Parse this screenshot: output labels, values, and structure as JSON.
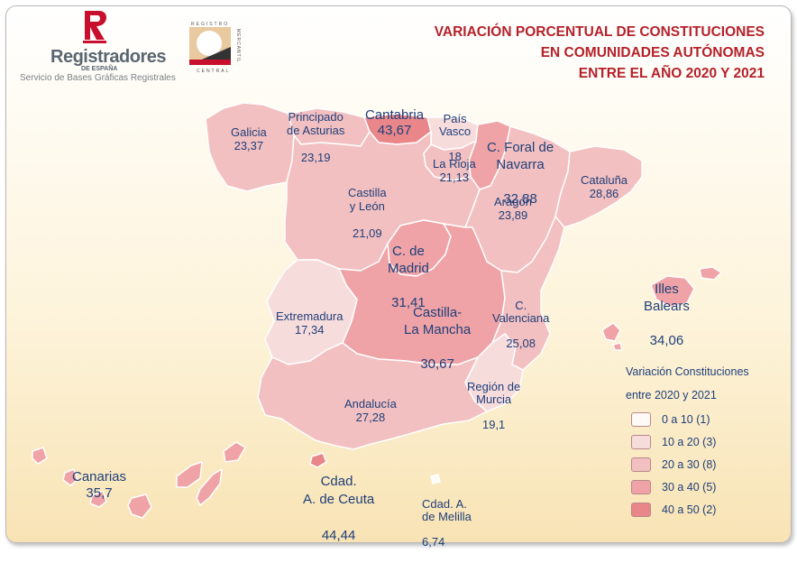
{
  "header": {
    "brand_name": "Registradores",
    "brand_sub": "DE ESPAÑA",
    "brand_service": "Servicio de Bases Gráficas Registrales",
    "mercantil_text": "REGISTRO MERCANTIL CENTRAL",
    "title_line1": "VARIACIÓN PORCENTUAL DE CONSTITUCIONES",
    "title_line2": "EN COMUNIDADES AUTÓNOMAS",
    "title_line3": "ENTRE EL AÑO 2020 Y 2021"
  },
  "colors": {
    "title": "#b5212a",
    "label": "#1f3f7a",
    "band_0_10": "#fefaf7",
    "band_10_20": "#f7dcdc",
    "band_20_30": "#f3c0c1",
    "band_30_40": "#efa3a6",
    "band_40_50": "#e8868a"
  },
  "regions": {
    "galicia": {
      "name": "Galicia",
      "value": "23,37",
      "band": "20-30"
    },
    "asturias": {
      "name": "Principado\nde Asturias",
      "value": "23,19",
      "band": "20-30"
    },
    "cantabria": {
      "name": "Cantabria",
      "value": "43,67",
      "band": "40-50"
    },
    "pais_vasco": {
      "name": "País\nVasco",
      "value": "18",
      "band": "10-20"
    },
    "navarra": {
      "name": "C. Foral de\nNavarra",
      "value": "32,88",
      "band": "30-40"
    },
    "la_rioja": {
      "name": "La Rioja",
      "value": "21,13",
      "band": "20-30"
    },
    "castilla_leon": {
      "name": "Castilla\ny León",
      "value": "21,09",
      "band": "20-30"
    },
    "aragon": {
      "name": "Aragón",
      "value": "23,89",
      "band": "20-30"
    },
    "cataluna": {
      "name": "Cataluña",
      "value": "28,86",
      "band": "20-30"
    },
    "madrid": {
      "name": "C. de\nMadrid",
      "value": "31,41",
      "band": "30-40"
    },
    "castilla_la_mancha": {
      "name": "Castilla-\nLa Mancha",
      "value": "30,67",
      "band": "30-40"
    },
    "extremadura": {
      "name": "Extremadura",
      "value": "17,34",
      "band": "10-20"
    },
    "valenciana": {
      "name": "C.\nValenciana",
      "value": "25,08",
      "band": "20-30"
    },
    "baleares": {
      "name": "Illes\nBalears",
      "value": "34,06",
      "band": "30-40"
    },
    "murcia": {
      "name": "Región de\nMurcia",
      "value": "19,1",
      "band": "10-20"
    },
    "andalucia": {
      "name": "Andalucía",
      "value": "27,28",
      "band": "20-30"
    },
    "canarias": {
      "name": "Canarias",
      "value": "35,7",
      "band": "30-40"
    },
    "ceuta": {
      "name": "Cdad.\nA. de Ceuta",
      "value": "44,44",
      "band": "40-50"
    },
    "melilla": {
      "name": "Cdad. A.\nde Melilla",
      "value": "6,74",
      "band": "0-10"
    }
  },
  "legend": {
    "title_line1": "Variación Constituciones",
    "title_line2": "entre 2020 y 2021",
    "items": [
      {
        "label": "0 a 10 (1)",
        "color": "#fefaf7"
      },
      {
        "label": "10 a 20 (3)",
        "color": "#f7dcdc"
      },
      {
        "label": "20 a 30 (8)",
        "color": "#f3c0c1"
      },
      {
        "label": "30 a 40 (5)",
        "color": "#efa3a6"
      },
      {
        "label": "40 a 50 (2)",
        "color": "#e8868a"
      }
    ]
  }
}
